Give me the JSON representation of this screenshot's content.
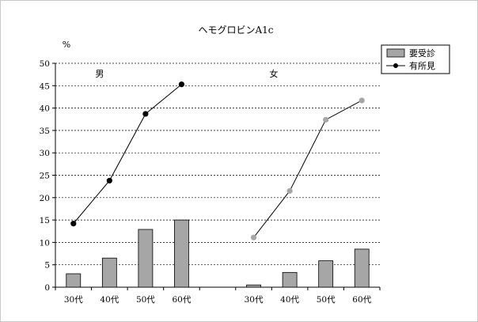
{
  "chart_data": {
    "type": "bar",
    "title": "ヘモグロビンA1c",
    "ylabel": "%",
    "ylim": [
      0,
      50
    ],
    "yticks": [
      0,
      5,
      10,
      15,
      20,
      25,
      30,
      35,
      40,
      45,
      50
    ],
    "grid": "horizontal-dashed",
    "legend": "top-right",
    "groups": [
      {
        "label": "男",
        "categories": [
          "30代",
          "40代",
          "50代",
          "60代"
        ],
        "bar_values": [
          3.0,
          6.5,
          12.9,
          15.0
        ],
        "line_values": [
          14.2,
          23.8,
          38.7,
          45.3
        ],
        "line_color": "#000000"
      },
      {
        "label": "女",
        "categories": [
          "30代",
          "40代",
          "50代",
          "60代"
        ],
        "bar_values": [
          0.5,
          3.3,
          5.9,
          8.5
        ],
        "line_values": [
          11.1,
          21.5,
          37.4,
          41.7
        ],
        "line_color": "#a6a6a6"
      }
    ],
    "series": [
      {
        "name": "要受診",
        "kind": "bar",
        "color": "#a6a6a6"
      },
      {
        "name": "有所見",
        "kind": "line",
        "color": "#000000"
      }
    ]
  }
}
